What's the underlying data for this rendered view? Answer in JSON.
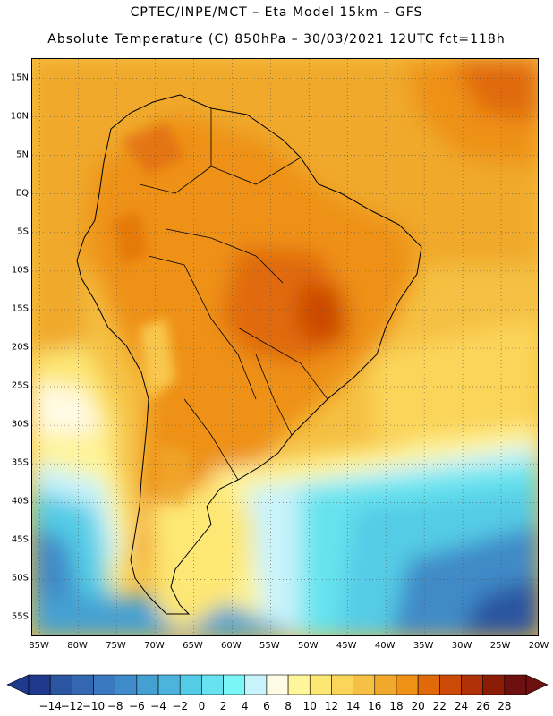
{
  "header": {
    "line1": "CPTEC/INPE/MCT –  Eta Model 15km – GFS",
    "line2": "Absolute Temperature (C) 850hPa – 30/03/2021 12UTC fct=118h"
  },
  "axes": {
    "lat_labels": [
      "15N",
      "10N",
      "5N",
      "EQ",
      "5S",
      "10S",
      "15S",
      "20S",
      "25S",
      "30S",
      "35S",
      "40S",
      "45S",
      "50S",
      "55S"
    ],
    "lat_values": [
      15,
      10,
      5,
      0,
      -5,
      -10,
      -15,
      -20,
      -25,
      -30,
      -35,
      -40,
      -45,
      -50,
      -55
    ],
    "lon_labels": [
      "85W",
      "80W",
      "75W",
      "70W",
      "65W",
      "60W",
      "55W",
      "50W",
      "45W",
      "40W",
      "35W",
      "30W",
      "25W",
      "20W"
    ],
    "lon_values": [
      -85,
      -80,
      -75,
      -70,
      -65,
      -60,
      -55,
      -50,
      -45,
      -40,
      -35,
      -30,
      -25,
      -20
    ],
    "lat_range": [
      -57.5,
      17.5
    ],
    "lon_range": [
      -86,
      -20
    ]
  },
  "colorbar": {
    "labels": [
      "-14",
      "-12",
      "-10",
      "-8",
      "-6",
      "-4",
      "-2",
      "0",
      "2",
      "4",
      "6",
      "8",
      "10",
      "12",
      "14",
      "16",
      "18",
      "20",
      "22",
      "24",
      "26",
      "28"
    ],
    "colors": [
      "#1f3a8c",
      "#2b55a0",
      "#3566b0",
      "#3a78bf",
      "#3f8ac8",
      "#45a0d2",
      "#4cb4dc",
      "#55cce6",
      "#66e3ee",
      "#7af6f7",
      "#c8f3fb",
      "#fffbe4",
      "#fff59a",
      "#fde774",
      "#fbd55a",
      "#f5c043",
      "#f0a92c",
      "#ee9115",
      "#e06a0a",
      "#cc4a05",
      "#b03007",
      "#8c1c06",
      "#6e1010"
    ]
  },
  "map": {
    "region": "South America",
    "variable": "Absolute Temperature (C) 850hPa"
  }
}
